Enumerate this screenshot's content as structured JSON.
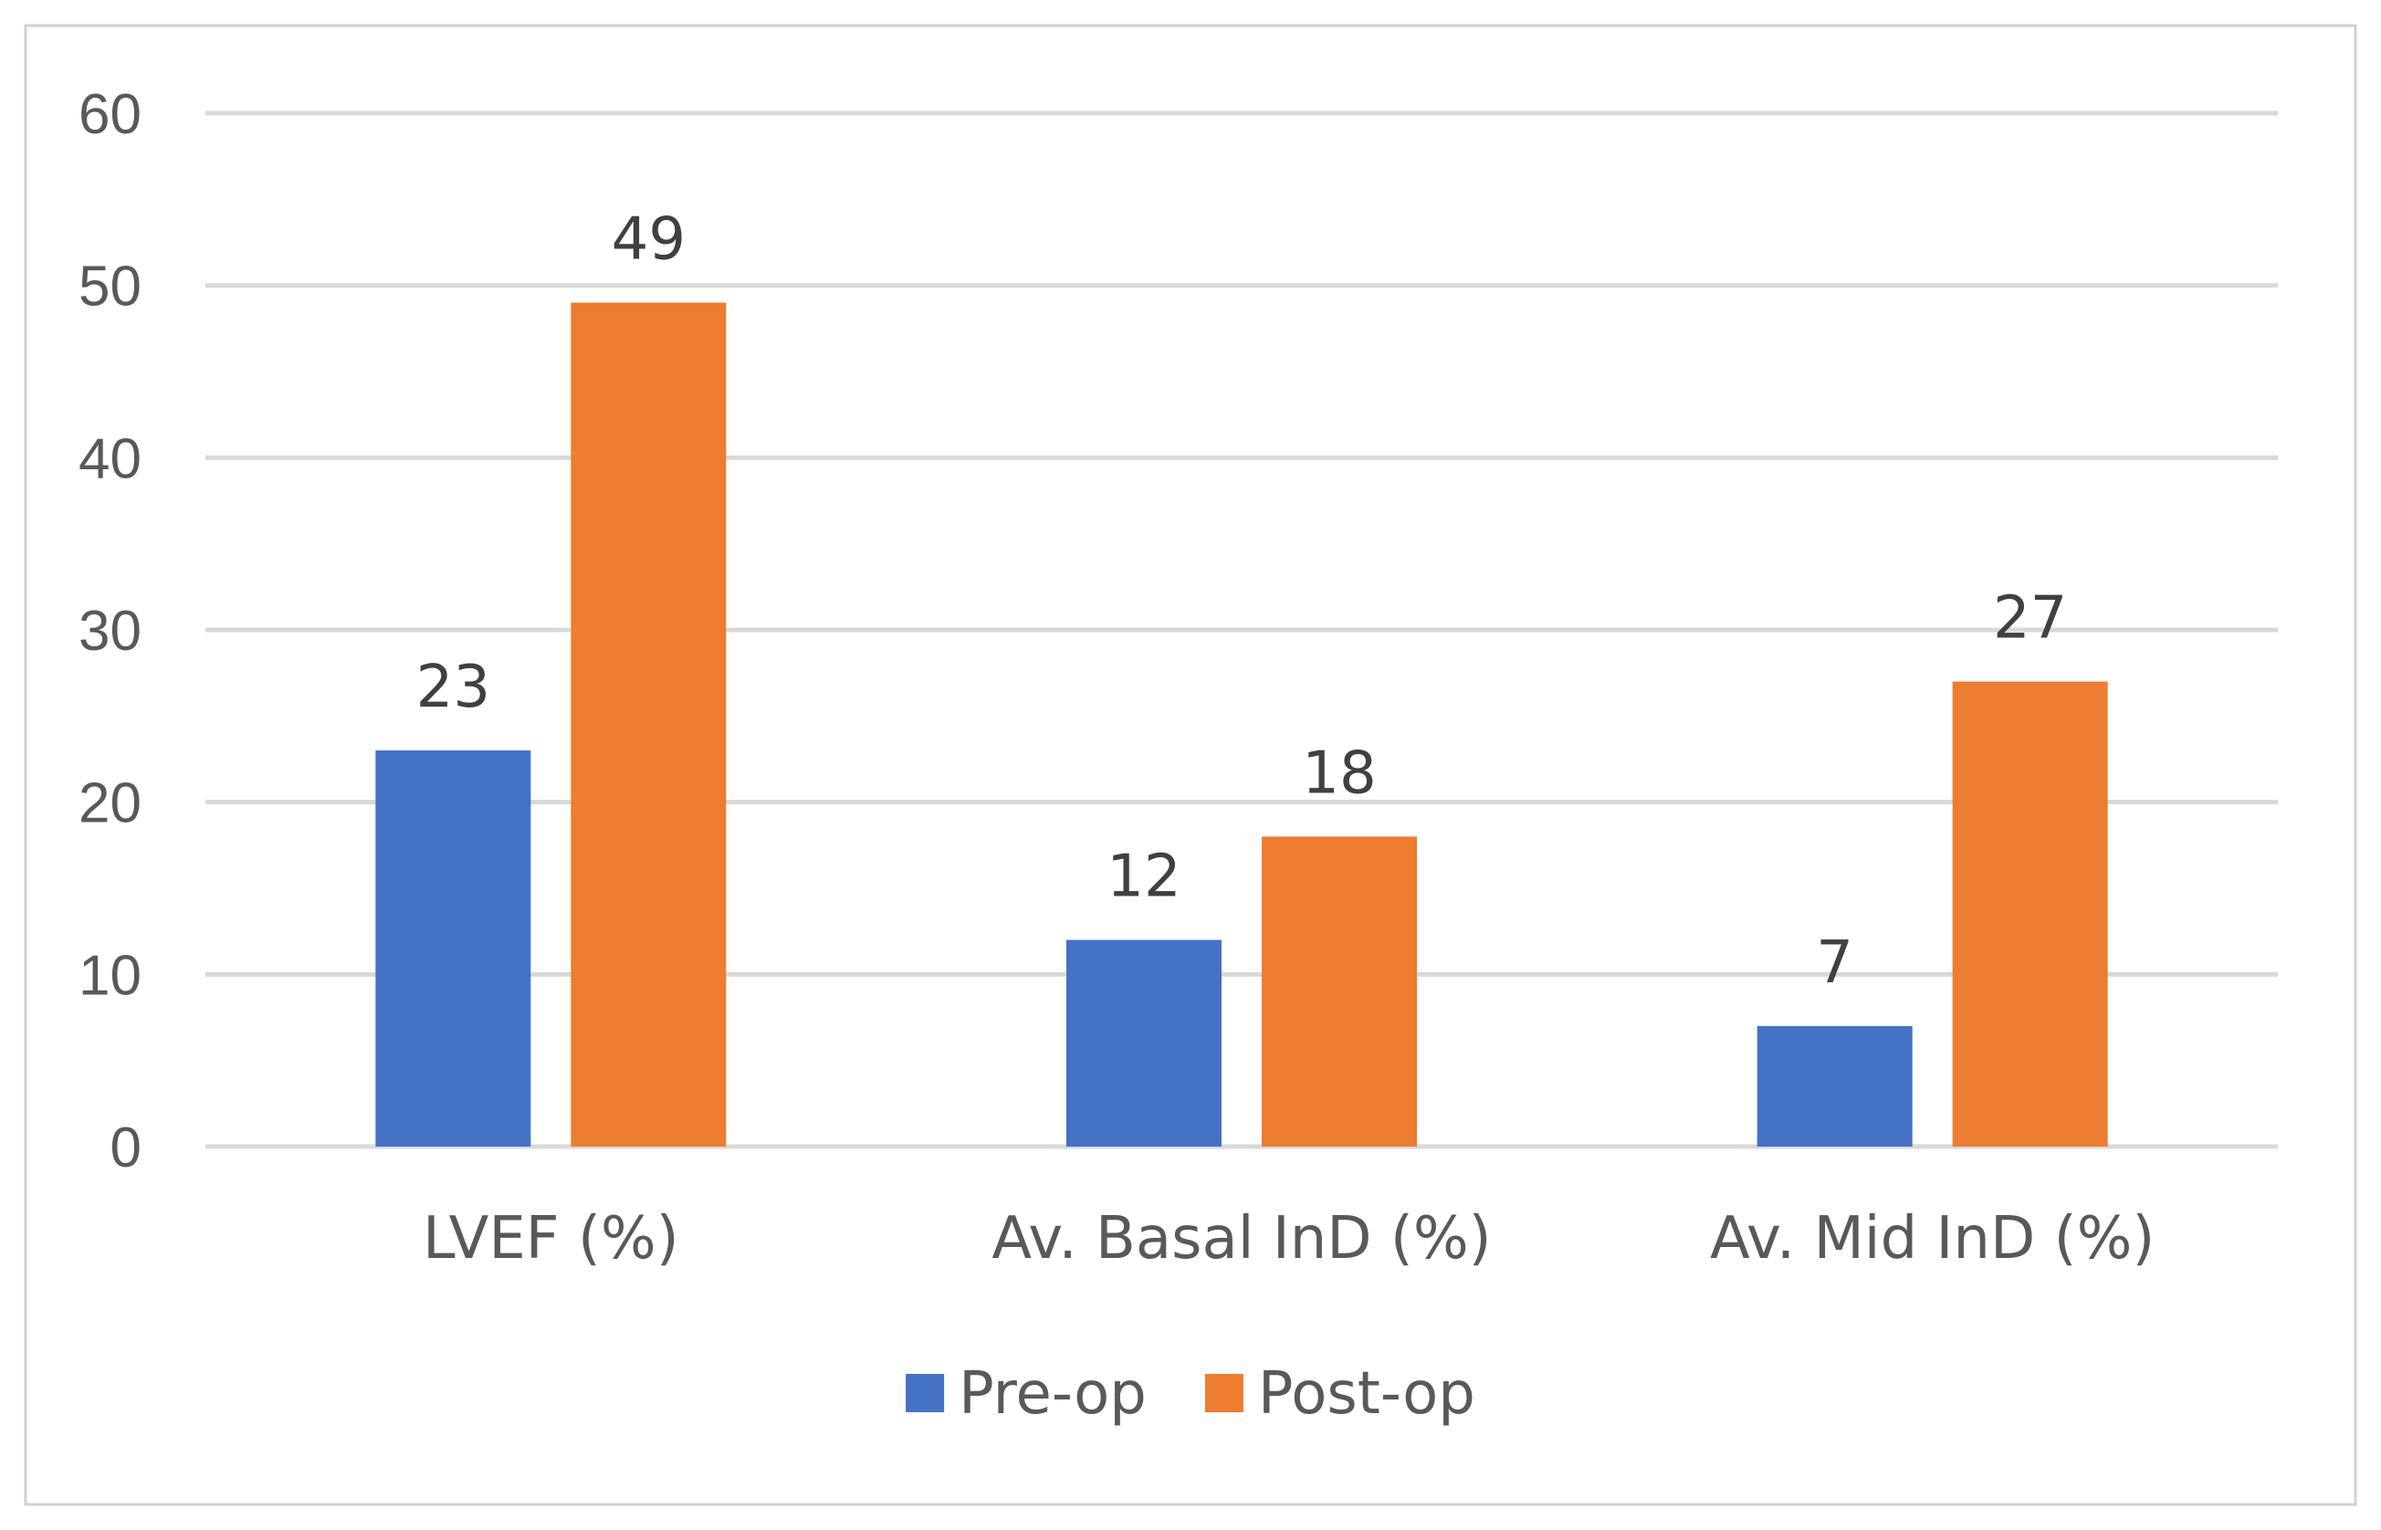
{
  "chart_data": {
    "type": "bar",
    "title": "",
    "xlabel": "",
    "ylabel": "",
    "categories": [
      "LVEF (%)",
      "Av. Basal InD (%)",
      "Av. Mid InD (%)"
    ],
    "series": [
      {
        "name": "Pre-op",
        "color": "#4472c4",
        "values": [
          23,
          12,
          7
        ]
      },
      {
        "name": "Post-op",
        "color": "#ed7d31",
        "values": [
          49,
          18,
          27
        ]
      }
    ],
    "ylim": [
      0,
      60
    ],
    "yticks": [
      0,
      10,
      20,
      30,
      40,
      50,
      60
    ],
    "grid": true,
    "legend_position": "bottom",
    "data_labels": true
  }
}
